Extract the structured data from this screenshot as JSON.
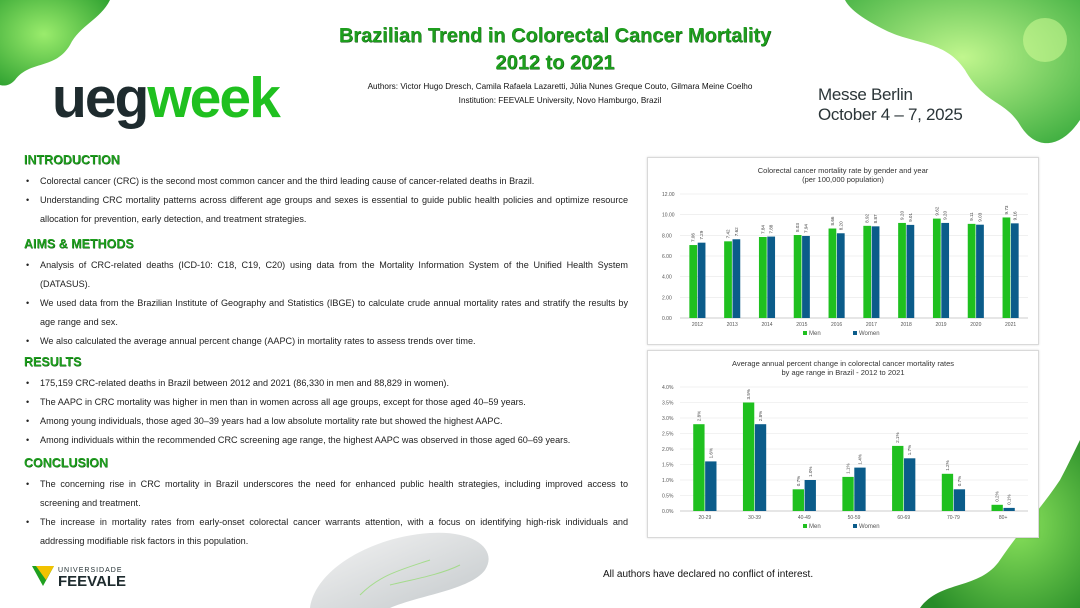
{
  "header": {
    "title_line1": "Brazilian Trend in Colorectal Cancer Mortality",
    "title_line2": "2012 to 2021",
    "authors": "Authors: Victor Hugo Dresch, Camila Rafaela Lazaretti, Júlia Nunes Greque Couto, Gilmara  Meine Coelho",
    "institution": "Institution: FEEVALE University, Novo Hamburgo, Brazil"
  },
  "logo": {
    "ueg": "ueg",
    "week": "week"
  },
  "venue": {
    "line1": "Messe Berlin",
    "line2": "October 4 – 7, 2025"
  },
  "introduction": {
    "title": "INTRODUCTION",
    "items": [
      "Colorectal cancer (CRC) is the second most common cancer and the third leading cause of cancer-related deaths in Brazil.",
      "Understanding CRC mortality patterns across different age groups and sexes is essential to guide public health policies and optimize resource allocation for prevention, early detection, and treatment strategies."
    ]
  },
  "aims_methods": {
    "title": "AIMS & METHODS",
    "items": [
      "Analysis of CRC-related deaths (ICD-10: C18, C19, C20) using data from the Mortality  Information System of the Unified Health System (DATASUS).",
      "We used data from the Brazilian Institute of Geography and Statistics (IBGE) to calculate crude annual mortality rates and stratify the results by age range and sex.",
      "We also calculated the average annual percent change (AAPC) in mortality rates to assess trends over time."
    ]
  },
  "results": {
    "title": "RESULTS",
    "items": [
      "175,159 CRC-related deaths in Brazil between 2012 and 2021 (86,330 in men and 88,829 in women).",
      "The AAPC in CRC mortality was higher in men than in women across all age groups, except for those aged 40–59 years.",
      "Among young individuals, those aged 30–39 years had a low absolute mortality rate but showed the highest AAPC.",
      "Among individuals within the recommended CRC screening age range, the highest AAPC was observed in those aged 60–69 years."
    ]
  },
  "conclusion": {
    "title": "CONCLUSION",
    "items": [
      "The concerning rise in CRC mortality in Brazil underscores the need for enhanced public health strategies, including improved access to screening and treatment.",
      "The increase in mortality rates from early-onset colorectal cancer warrants attention, with a focus on identifying high-risk individuals and addressing modifiable risk factors in this population."
    ]
  },
  "footer": {
    "conflict": "All authors have declared no conflict of interest.",
    "feevale_top": "UNIVERSIDADE",
    "feevale_name": "FEEVALE"
  },
  "colors": {
    "men": "#1fc01f",
    "women": "#0b5c8a",
    "title_green": "#1e9e1e"
  },
  "chart_data": [
    {
      "type": "bar",
      "title": "Colorectal cancer mortality rate by gender and year",
      "subtitle": "(per 100,000 population)",
      "categories": [
        "2012",
        "2013",
        "2014",
        "2015",
        "2016",
        "2017",
        "2018",
        "2019",
        "2020",
        "2021"
      ],
      "series": [
        {
          "name": "Men",
          "values": [
            7.06,
            7.42,
            7.84,
            8.03,
            8.66,
            8.92,
            9.2,
            9.62,
            9.11,
            9.73
          ],
          "labels": [
            "7.06",
            "7.42",
            "7.84",
            "8.03",
            "8.66",
            "8.92",
            "9.20",
            "9.62",
            "9.11",
            "9.73"
          ]
        },
        {
          "name": "Women",
          "values": [
            7.29,
            7.62,
            7.88,
            7.94,
            8.2,
            8.87,
            9.01,
            9.2,
            9.03,
            9.16
          ],
          "labels": [
            "7.29",
            "7.62",
            "7.88",
            "7.94",
            "8.20",
            "8.87",
            "9.01",
            "9.20",
            "9.03",
            "9.16"
          ]
        }
      ],
      "ylim": [
        0,
        12
      ],
      "yticks": [
        "0.00",
        "2.00",
        "4.00",
        "6.00",
        "8.00",
        "10.00",
        "12.00"
      ],
      "legend": "bottom"
    },
    {
      "type": "bar",
      "title": "Average annual percent change in colorectal cancer mortality rates",
      "subtitle": "by age range in Brazil - 2012 to 2021",
      "categories": [
        "20-29",
        "30-39",
        "40-49",
        "50-59",
        "60-69",
        "70-79",
        "80+"
      ],
      "series": [
        {
          "name": "Men",
          "values": [
            2.8,
            3.5,
            0.7,
            1.1,
            2.1,
            1.2,
            0.2
          ],
          "labels": [
            "2.8%",
            "3.5%",
            "0.7%",
            "1.1%",
            "2.1%",
            "1.2%",
            "0.2%"
          ]
        },
        {
          "name": "Women",
          "values": [
            1.6,
            2.8,
            1.0,
            1.4,
            1.7,
            0.7,
            0.1
          ],
          "labels": [
            "1.6%",
            "2.8%",
            "1.0%",
            "1.4%",
            "1.7%",
            "0.7%",
            "0.1%"
          ]
        }
      ],
      "ylim": [
        0,
        4
      ],
      "yticks": [
        "0.0%",
        "0.5%",
        "1.0%",
        "1.5%",
        "2.0%",
        "2.5%",
        "3.0%",
        "3.5%",
        "4.0%"
      ],
      "legend": "bottom"
    }
  ]
}
